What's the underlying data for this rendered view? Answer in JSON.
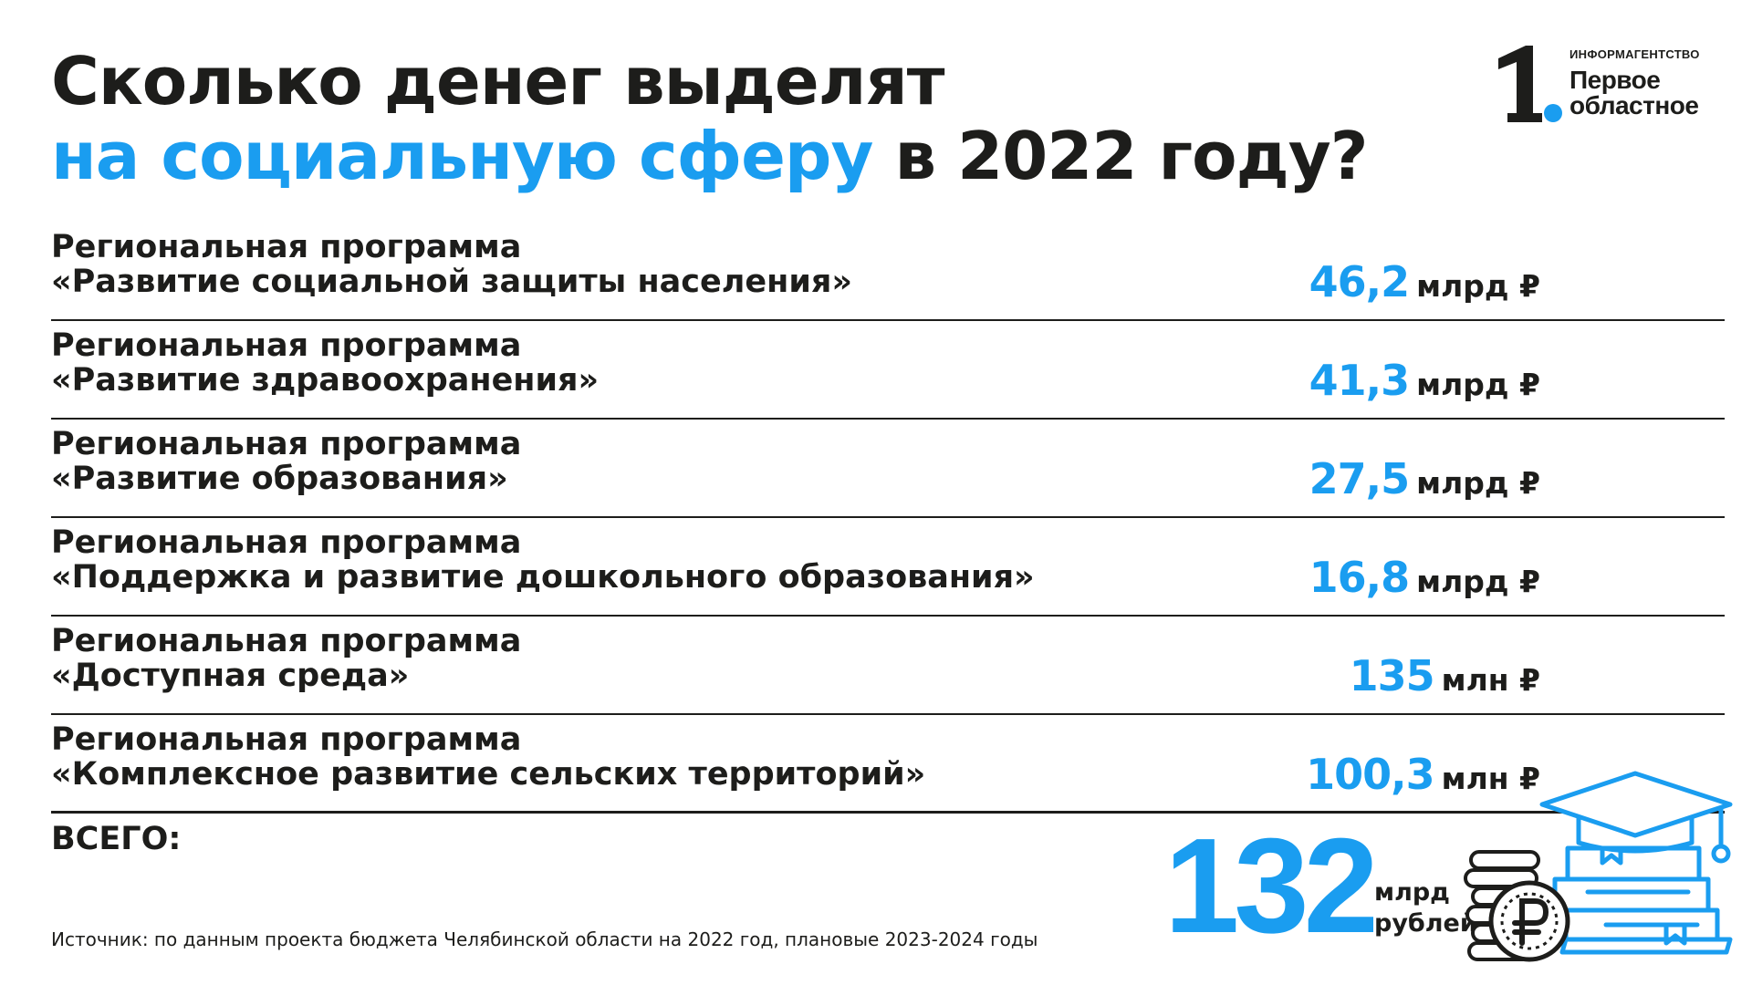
{
  "title": {
    "line1": "Сколько денег выделят",
    "line2_accent": "на социальную сферу",
    "line2_rest": " в 2022 году?"
  },
  "logo": {
    "mark": "1.",
    "caption": "ИНФОРМАГЕНТСТВО",
    "name_line1": "Первое",
    "name_line2": "областное"
  },
  "programs": [
    {
      "label1": "Региональная программа",
      "label2": "«Развитие социальной защиты населения»",
      "value": "46,2",
      "unit": "млрд ₽"
    },
    {
      "label1": "Региональная программа",
      "label2": "«Развитие здравоохранения»",
      "value": "41,3",
      "unit": "млрд ₽"
    },
    {
      "label1": "Региональная программа",
      "label2": "«Развитие образования»",
      "value": "27,5",
      "unit": "млрд ₽"
    },
    {
      "label1": "Региональная программа",
      "label2": "«Поддержка и развитие дошкольного образования»",
      "value": "16,8",
      "unit": "млрд ₽"
    },
    {
      "label1": "Региональная программа",
      "label2": "«Доступная среда»",
      "value": "135",
      "unit": "млн ₽"
    },
    {
      "label1": "Региональная программа",
      "label2": "«Комплексное развитие сельских территорий»",
      "value": "100,3",
      "unit": "млн ₽"
    }
  ],
  "total": {
    "label": "ВСЕГО:",
    "value": "132",
    "unit_line1": "млрд",
    "unit_line2": "рублей"
  },
  "source": "Источник: по данным проекта бюджета Челябинской области на 2022 год, плановые 2023-2024 годы",
  "colors": {
    "accent": "#1a9df0",
    "text": "#1d1d1b",
    "background": "#ffffff"
  },
  "icons": [
    "coin-stack-icon",
    "ruble-coin-icon",
    "book-stack-icon",
    "graduation-cap-icon"
  ]
}
